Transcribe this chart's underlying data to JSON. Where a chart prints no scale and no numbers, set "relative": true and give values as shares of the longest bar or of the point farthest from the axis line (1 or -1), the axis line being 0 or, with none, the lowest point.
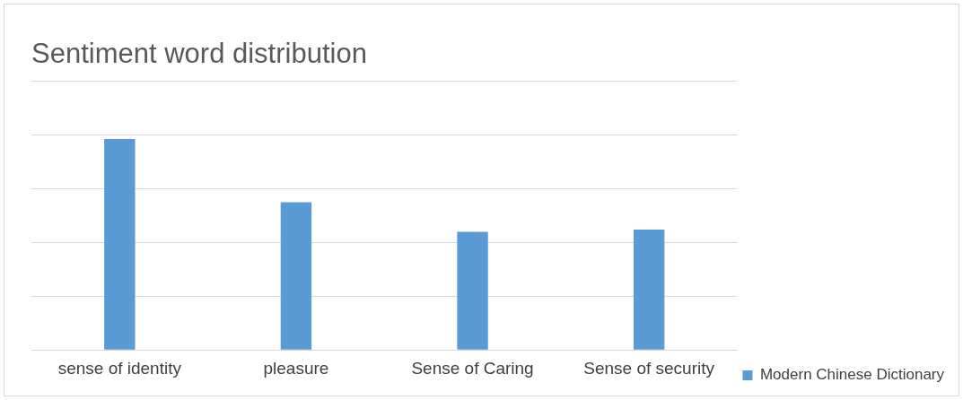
{
  "chart_data": {
    "type": "bar",
    "title": "Sentiment word distribution",
    "categories": [
      "sense of identity",
      "pleasure",
      "Sense of Caring",
      "Sense of security"
    ],
    "series": [
      {
        "name": "Modern Chinese Dictionary",
        "color": "#5b9bd5",
        "values": [
          1,
          0.7,
          0.56,
          0.57
        ]
      }
    ],
    "relative": true,
    "grid": "y",
    "legend": "bottom right"
  }
}
